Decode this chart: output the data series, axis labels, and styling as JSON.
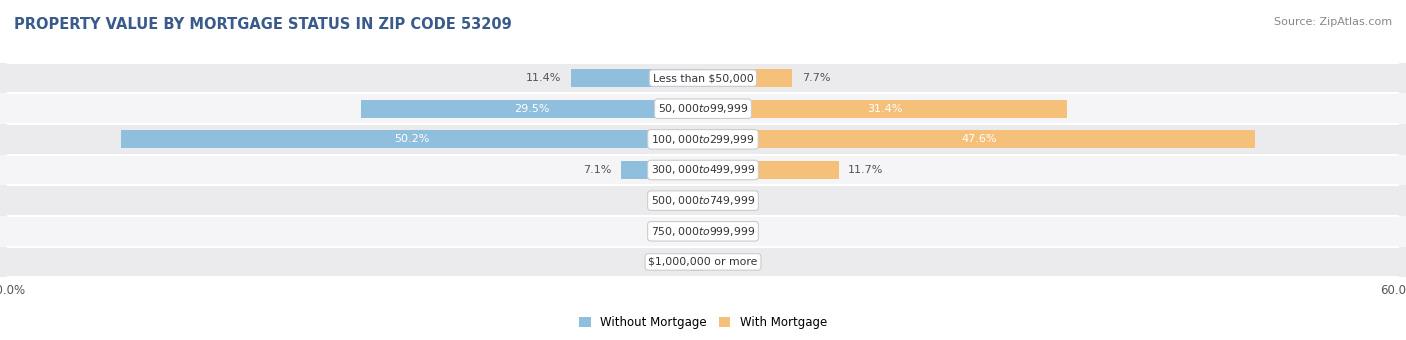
{
  "title": "PROPERTY VALUE BY MORTGAGE STATUS IN ZIP CODE 53209",
  "source": "Source: ZipAtlas.com",
  "categories": [
    "Less than $50,000",
    "$50,000 to $99,999",
    "$100,000 to $299,999",
    "$300,000 to $499,999",
    "$500,000 to $749,999",
    "$750,000 to $999,999",
    "$1,000,000 or more"
  ],
  "without_mortgage": [
    11.4,
    29.5,
    50.2,
    7.1,
    0.55,
    0.2,
    1.0
  ],
  "with_mortgage": [
    7.7,
    31.4,
    47.6,
    11.7,
    1.6,
    0.0,
    0.0
  ],
  "without_mortgage_color": "#90bfdd",
  "with_mortgage_color": "#f5c07a",
  "row_bg_color_even": "#ebebed",
  "row_bg_color_odd": "#f5f5f7",
  "fig_bg_color": "#ffffff",
  "label_color_dark": "#555555",
  "label_color_white": "#ffffff",
  "xlim": 60.0,
  "title_fontsize": 10.5,
  "source_fontsize": 8,
  "bar_label_fontsize": 8,
  "category_fontsize": 7.8,
  "legend_fontsize": 8.5,
  "axis_label_fontsize": 8.5,
  "bar_height": 0.58,
  "white_label_threshold": 25
}
